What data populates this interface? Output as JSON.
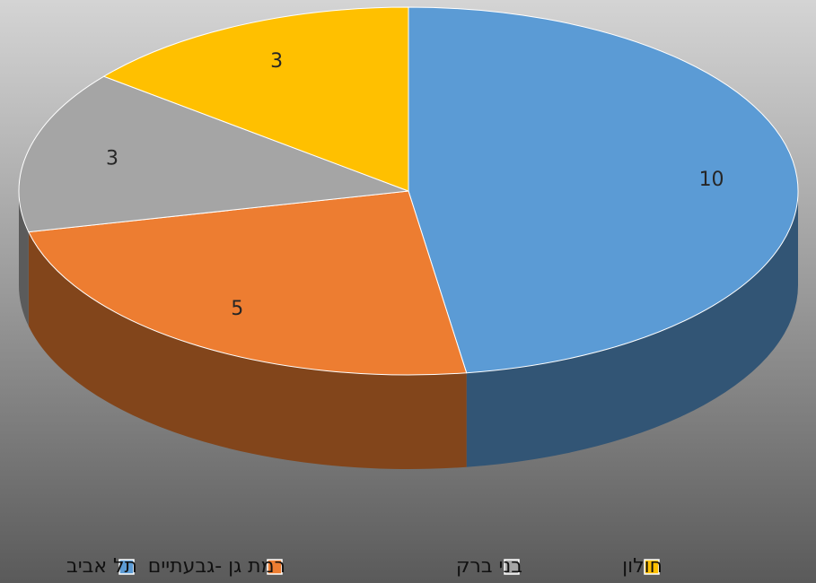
{
  "chart_data": {
    "type": "pie3d",
    "categories": [
      "תל אביב",
      "רמת גן -גבעתיים",
      "בני ברק",
      "חולון"
    ],
    "values": [
      10,
      5,
      3,
      3
    ],
    "colors": [
      "#5b9bd5",
      "#ed7d31",
      "#a5a5a5",
      "#ffc000"
    ]
  }
}
